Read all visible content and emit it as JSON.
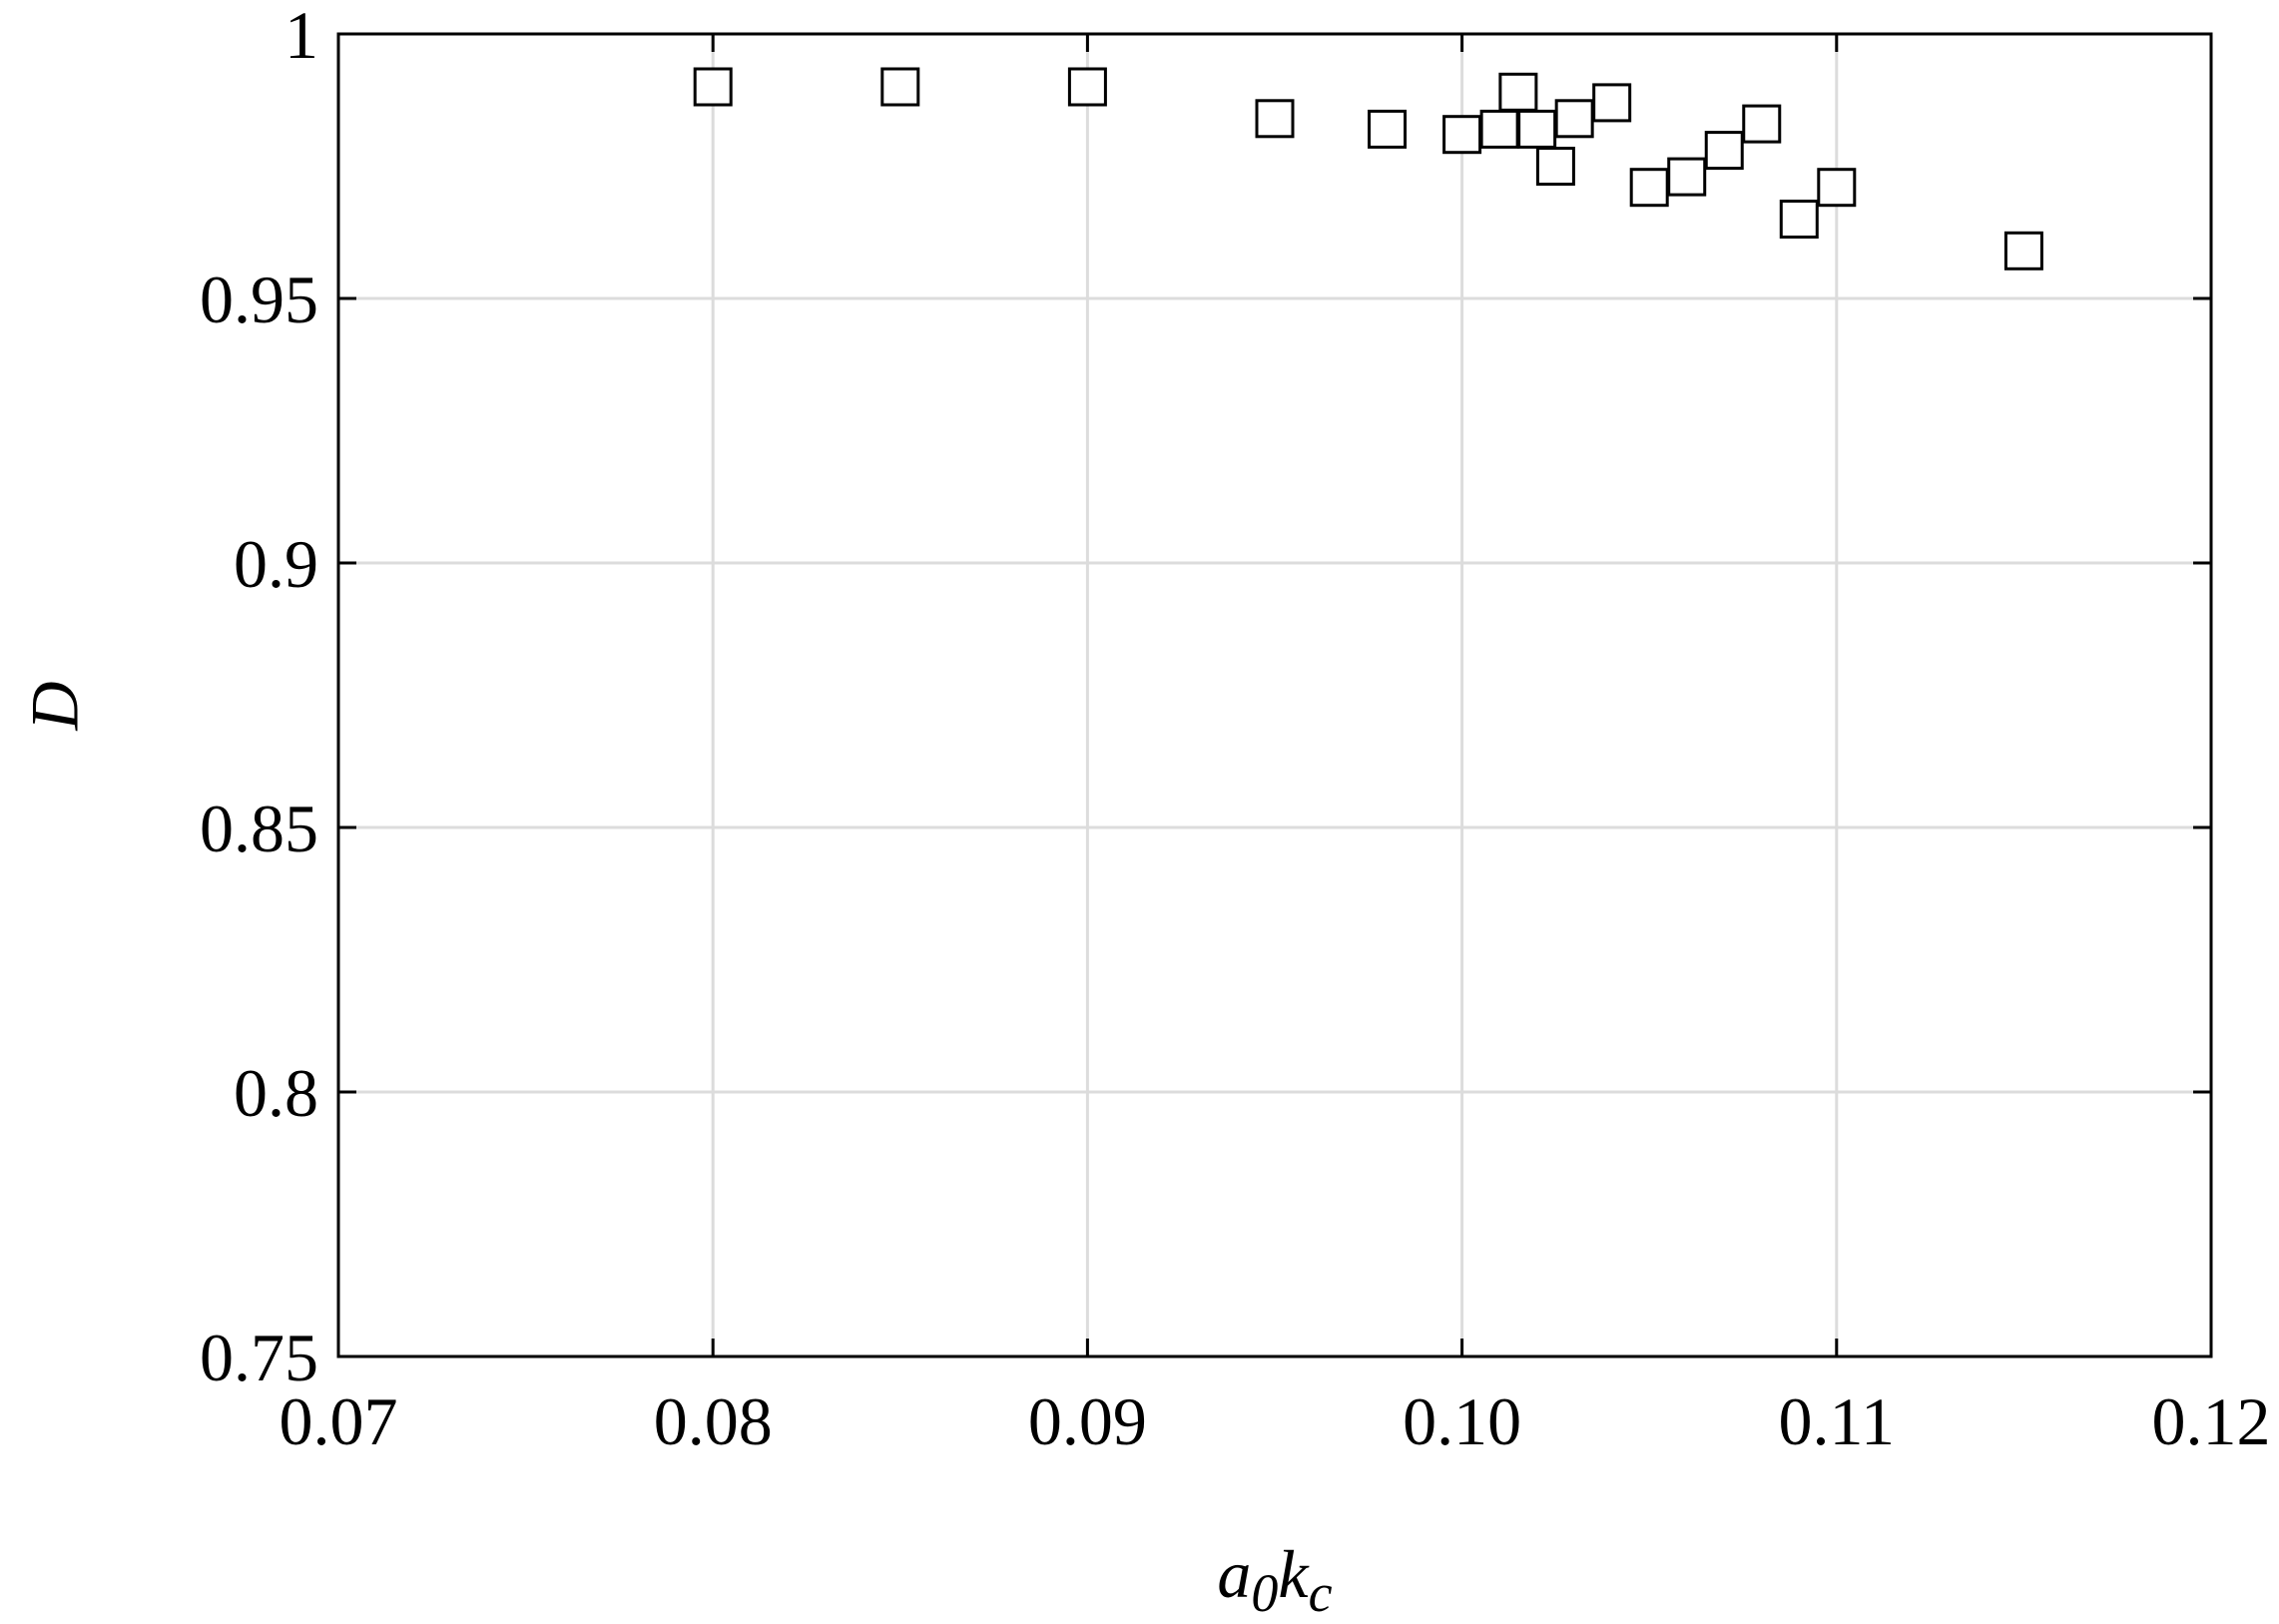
{
  "chart_data": {
    "type": "scatter",
    "x_label": [
      "a",
      "0",
      "k",
      "c"
    ],
    "y_label": "D",
    "x": [
      0.08,
      0.085,
      0.09,
      0.095,
      0.098,
      0.1,
      0.101,
      0.1015,
      0.102,
      0.1025,
      0.103,
      0.104,
      0.105,
      0.106,
      0.107,
      0.108,
      0.109,
      0.11,
      0.115
    ],
    "values": [
      0.99,
      0.99,
      0.99,
      0.984,
      0.982,
      0.981,
      0.982,
      0.989,
      0.982,
      0.975,
      0.984,
      0.987,
      0.971,
      0.973,
      0.978,
      0.983,
      0.965,
      0.971,
      0.959
    ],
    "color": "#000000",
    "xlim": [
      0.07,
      0.12
    ],
    "xticks": [
      0.07,
      0.08,
      0.09,
      {
        "value": 0.1,
        "label": "0.10"
      },
      0.11,
      0.12
    ],
    "ylim": [
      0.75,
      1
    ],
    "yticks": [
      0.75,
      0.8,
      0.85,
      0.9,
      0.95,
      1
    ],
    "grid": true
  }
}
